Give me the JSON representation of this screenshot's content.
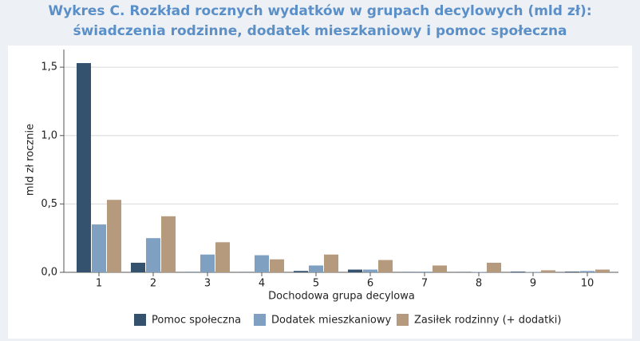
{
  "chart_data": {
    "type": "bar",
    "title": [
      "Wykres C. Rozkład rocznych wydatków w grupach decylowych (mld zł):",
      "świadczenia rodzinne, dodatek mieszkaniowy i pomoc społeczna"
    ],
    "y_label": "mld zł rocznie",
    "x_label": "Dochodowa grupa decylowa",
    "categories": [
      "1",
      "2",
      "3",
      "4",
      "5",
      "6",
      "7",
      "8",
      "9",
      "10"
    ],
    "series": [
      {
        "name": "Pomoc społeczna",
        "color": "#34516e",
        "values": [
          1.53,
          0.07,
          0.003,
          0.003,
          0.01,
          0.02,
          0.003,
          0.003,
          0.005,
          0.005
        ]
      },
      {
        "name": "Dodatek mieszkaniowy",
        "color": "#7fa0c0",
        "values": [
          0.35,
          0.25,
          0.13,
          0.125,
          0.05,
          0.02,
          0.005,
          0.003,
          0.003,
          0.01
        ]
      },
      {
        "name": "Zasiłek rodzinny (+ dodatki)",
        "color": "#b59a7e",
        "values": [
          0.53,
          0.41,
          0.22,
          0.095,
          0.13,
          0.09,
          0.05,
          0.07,
          0.015,
          0.02
        ]
      }
    ],
    "ylim": [
      0,
      1.6
    ],
    "yticks": [
      {
        "value": 0,
        "label": "0,0"
      },
      {
        "value": 0.5,
        "label": "0,5"
      },
      {
        "value": 1,
        "label": "1,0"
      },
      {
        "value": 1.5,
        "label": "1,5"
      }
    ],
    "grid": true,
    "legend": "bottom"
  }
}
